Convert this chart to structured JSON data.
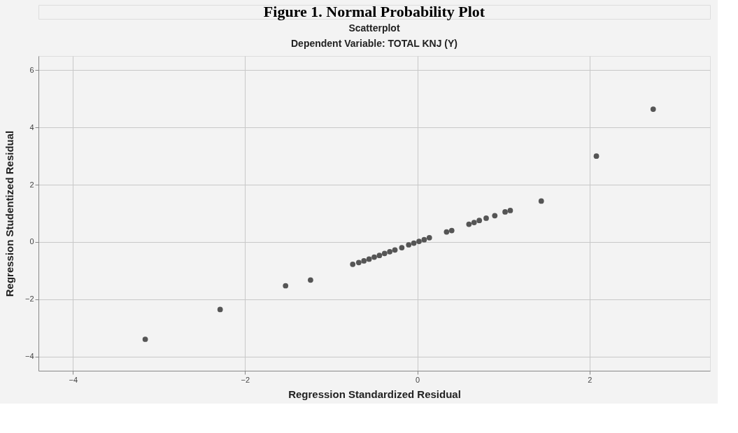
{
  "chart_data": {
    "type": "scatter",
    "title": "Scatterplot",
    "subtitle": "Dependent Variable: TOTAL KNJ (Y)",
    "annotations": [
      "Figure 1. Normal Probability Plot"
    ],
    "xlabel": "Regression Standardized Residual",
    "ylabel": "Regression Studentized Residual",
    "x": [
      -3.16,
      -2.29,
      -1.53,
      -1.24,
      -0.75,
      -0.68,
      -0.62,
      -0.56,
      -0.5,
      -0.44,
      -0.38,
      -0.32,
      -0.26,
      -0.18,
      -0.1,
      -0.04,
      0.02,
      0.08,
      0.14,
      0.34,
      0.4,
      0.6,
      0.66,
      0.72,
      0.8,
      0.9,
      1.02,
      1.08,
      1.44,
      2.08,
      2.74
    ],
    "series": [
      {
        "color": "#555555",
        "values": [
          -3.4,
          -2.36,
          -1.53,
          -1.33,
          -0.78,
          -0.72,
          -0.66,
          -0.6,
          -0.53,
          -0.47,
          -0.4,
          -0.34,
          -0.28,
          -0.2,
          -0.1,
          -0.04,
          0.02,
          0.08,
          0.15,
          0.35,
          0.4,
          0.62,
          0.68,
          0.75,
          0.83,
          0.92,
          1.05,
          1.1,
          1.43,
          3.0,
          4.64
        ]
      }
    ],
    "xlim": [
      -4.4,
      3.4
    ],
    "xticks": [
      -4,
      -2,
      0,
      2
    ],
    "ylim": [
      -4.5,
      6.5
    ],
    "yticks": [
      -4,
      -2,
      0,
      2,
      4,
      6
    ],
    "grid": true,
    "marker": "circle",
    "legend": false
  }
}
